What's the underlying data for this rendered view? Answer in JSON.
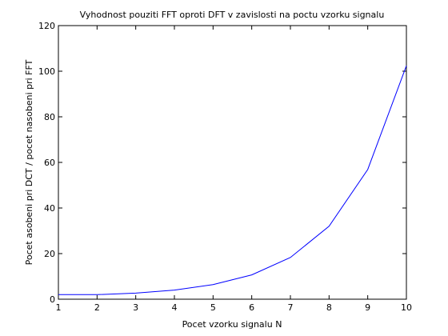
{
  "chart_data": {
    "type": "line",
    "title": "Vyhodnost pouziti FFT oproti DFT v zavislosti na poctu vzorku signalu",
    "xlabel": "Pocet vzorku signalu N",
    "ylabel": "Pocet asobeni pri DCT / pocet nasobeni pri FFT",
    "xlim": [
      1,
      10
    ],
    "ylim": [
      0,
      120
    ],
    "xticks": [
      1,
      2,
      3,
      4,
      5,
      6,
      7,
      8,
      9,
      10
    ],
    "yticks": [
      0,
      20,
      40,
      60,
      80,
      100,
      120
    ],
    "grid": false,
    "series": [
      {
        "color": "#0000ff",
        "x": [
          1,
          2,
          3,
          4,
          5,
          6,
          7,
          8,
          9,
          10
        ],
        "y": [
          2,
          2,
          2.67,
          4,
          6.4,
          10.67,
          18.29,
          32,
          56.89,
          102.4
        ]
      }
    ]
  }
}
